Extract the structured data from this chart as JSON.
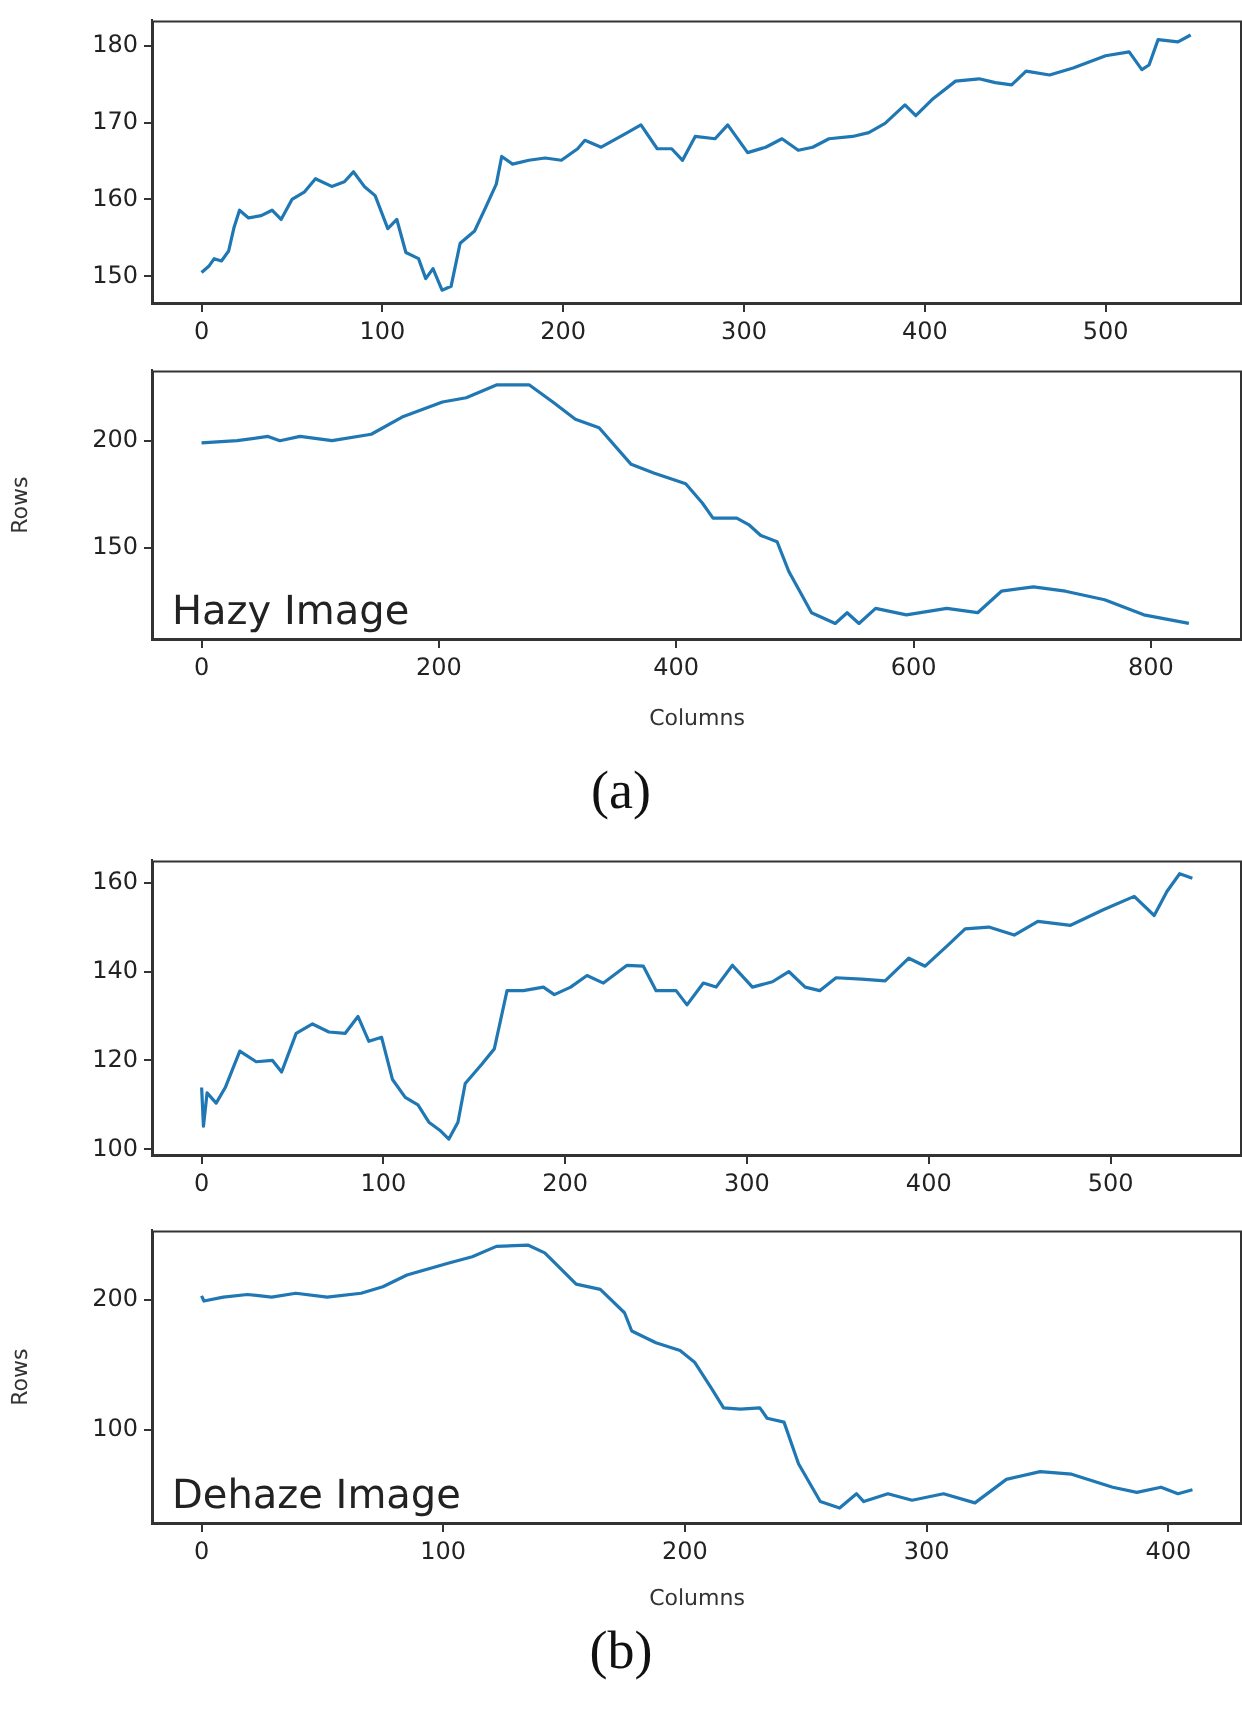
{
  "chart_data": [
    {
      "type": "line",
      "color": "#1f77b4",
      "xlim": [
        -27.4,
        575.4
      ],
      "xticks": [
        0,
        100,
        200,
        300,
        400,
        500
      ],
      "ylim": [
        146.4,
        183.3
      ],
      "yticks": [
        150,
        160,
        170,
        180
      ],
      "grid": false,
      "legend": false,
      "marker": "none",
      "line_style": "solid",
      "x": [
        0,
        4,
        7,
        11,
        15,
        18,
        21,
        26,
        33,
        39,
        44,
        50,
        57,
        63,
        72,
        79,
        84,
        90,
        96,
        103,
        108,
        113,
        120,
        124,
        128,
        133,
        138,
        143,
        151,
        157,
        163,
        166,
        172,
        181,
        190,
        199,
        208,
        212,
        221,
        234,
        243,
        252,
        260,
        266,
        273,
        284,
        291,
        302,
        312,
        321,
        330,
        338,
        347,
        360,
        369,
        378,
        389,
        395,
        404,
        417,
        430,
        439,
        448,
        456,
        469,
        482,
        500,
        513,
        520,
        524,
        529,
        540,
        547
      ],
      "values": [
        150.5,
        151.3,
        152.3,
        152,
        153.3,
        156.4,
        158.6,
        157.6,
        157.9,
        158.6,
        157.4,
        160,
        161,
        162.7,
        161.7,
        162.3,
        163.6,
        161.7,
        160.5,
        156.2,
        157.4,
        153.1,
        152.3,
        149.7,
        151,
        148.2,
        148.7,
        154.3,
        155.9,
        158.9,
        162,
        165.6,
        164.6,
        165.1,
        165.4,
        165.1,
        166.6,
        167.7,
        166.8,
        168.5,
        169.7,
        166.6,
        166.6,
        165.1,
        168.2,
        167.9,
        169.7,
        166.1,
        166.8,
        167.9,
        166.4,
        166.8,
        167.9,
        168.2,
        168.7,
        169.9,
        172.3,
        170.9,
        173,
        175.4,
        175.7,
        175.2,
        174.9,
        176.7,
        176.2,
        177.1,
        178.7,
        179.2,
        176.9,
        177.5,
        180.8,
        180.5,
        181.4
      ]
    },
    {
      "type": "line",
      "color": "#1f77b4",
      "xlim": [
        -41.75,
        876.75
      ],
      "xticks": [
        0,
        200,
        400,
        600,
        800
      ],
      "ylim": [
        107.3,
        232.7
      ],
      "yticks": [
        150,
        200
      ],
      "grid": false,
      "legend": false,
      "marker": "none",
      "line_style": "solid",
      "xlabel": "Columns",
      "ylabel": "Rows",
      "annotations": [
        "Hazy Image",
        "(a)"
      ],
      "x": [
        0,
        30,
        56,
        66,
        83,
        110,
        143,
        169,
        203,
        223,
        249,
        276,
        296,
        315,
        335,
        362,
        381,
        408,
        422,
        431,
        451,
        461,
        471,
        485,
        495,
        505,
        514,
        534,
        544,
        554,
        568,
        594,
        628,
        654,
        674,
        701,
        728,
        761,
        794,
        832
      ],
      "values": [
        199,
        200,
        202,
        200,
        202,
        200,
        203,
        211,
        218,
        220,
        226,
        226,
        218,
        210,
        206,
        189,
        185,
        180,
        171,
        164,
        164,
        161,
        156,
        153,
        139,
        129,
        120,
        115,
        120,
        115,
        122,
        119,
        122,
        120,
        130,
        132,
        130,
        126,
        119,
        115
      ]
    },
    {
      "type": "line",
      "color": "#1f77b4",
      "xlim": [
        -27.3,
        572.3
      ],
      "xticks": [
        0,
        100,
        200,
        300,
        400,
        500
      ],
      "ylim": [
        98.5,
        165
      ],
      "yticks": [
        100,
        120,
        140,
        160
      ],
      "grid": false,
      "legend": false,
      "marker": "none",
      "line_style": "solid",
      "x": [
        0,
        1,
        3,
        8,
        13,
        21,
        30,
        39,
        44,
        52,
        61,
        70,
        79,
        86,
        92,
        99,
        105,
        112,
        119,
        125,
        131,
        136,
        141,
        145,
        154,
        161,
        168,
        177,
        188,
        194,
        203,
        212,
        221,
        234,
        243,
        250,
        261,
        267,
        276,
        283,
        292,
        303,
        314,
        323,
        332,
        340,
        349,
        363,
        376,
        389,
        398,
        411,
        420,
        433,
        447,
        460,
        478,
        496,
        513,
        524,
        531,
        538,
        545
      ],
      "values": [
        113.9,
        105.2,
        112.7,
        110.4,
        113.9,
        122.1,
        119.7,
        120,
        117.4,
        126.1,
        128.2,
        126.4,
        126.1,
        129.9,
        124.3,
        125.2,
        115.7,
        111.7,
        110,
        106.1,
        104.3,
        102.3,
        106.1,
        114.8,
        119.1,
        122.6,
        135.7,
        135.7,
        136.5,
        134.8,
        136.5,
        139.1,
        137.4,
        141.4,
        141.2,
        135.7,
        135.7,
        132.5,
        137.4,
        136.5,
        141.4,
        136.5,
        137.7,
        140,
        136.5,
        135.7,
        138.6,
        138.3,
        137.9,
        143,
        141.2,
        146.1,
        149.6,
        150,
        148.2,
        151.3,
        150.4,
        153.9,
        156.9,
        152.6,
        158,
        162,
        161
      ]
    },
    {
      "type": "line",
      "color": "#1f77b4",
      "xlim": [
        -20.5,
        430.5
      ],
      "xticks": [
        0,
        100,
        200,
        300,
        400
      ],
      "ylim": [
        27.75,
        253.25
      ],
      "yticks": [
        100,
        200
      ],
      "grid": false,
      "legend": false,
      "marker": "none",
      "line_style": "solid",
      "xlabel": "Columns",
      "ylabel": "Rows",
      "annotations": [
        "Dehaze Image",
        "(b)"
      ],
      "x": [
        0,
        1,
        9,
        19,
        29,
        39,
        52,
        66,
        75,
        85,
        102,
        112,
        122,
        135,
        142,
        155,
        165,
        175,
        178,
        188,
        198,
        204,
        211,
        216,
        223,
        231,
        234,
        241,
        247,
        256,
        264,
        271,
        274,
        284,
        294,
        307,
        320,
        333,
        347,
        360,
        377,
        387,
        397,
        404,
        410
      ],
      "values": [
        203,
        199,
        202,
        204,
        202,
        205,
        202,
        205,
        210,
        219,
        228,
        233,
        241,
        242,
        236,
        212,
        208,
        190,
        176,
        167,
        161,
        152,
        132,
        117,
        116,
        117,
        109,
        106,
        74,
        45,
        40,
        51,
        45,
        51,
        46,
        51,
        44,
        62,
        68,
        66,
        56,
        52,
        56,
        51,
        54
      ]
    }
  ]
}
